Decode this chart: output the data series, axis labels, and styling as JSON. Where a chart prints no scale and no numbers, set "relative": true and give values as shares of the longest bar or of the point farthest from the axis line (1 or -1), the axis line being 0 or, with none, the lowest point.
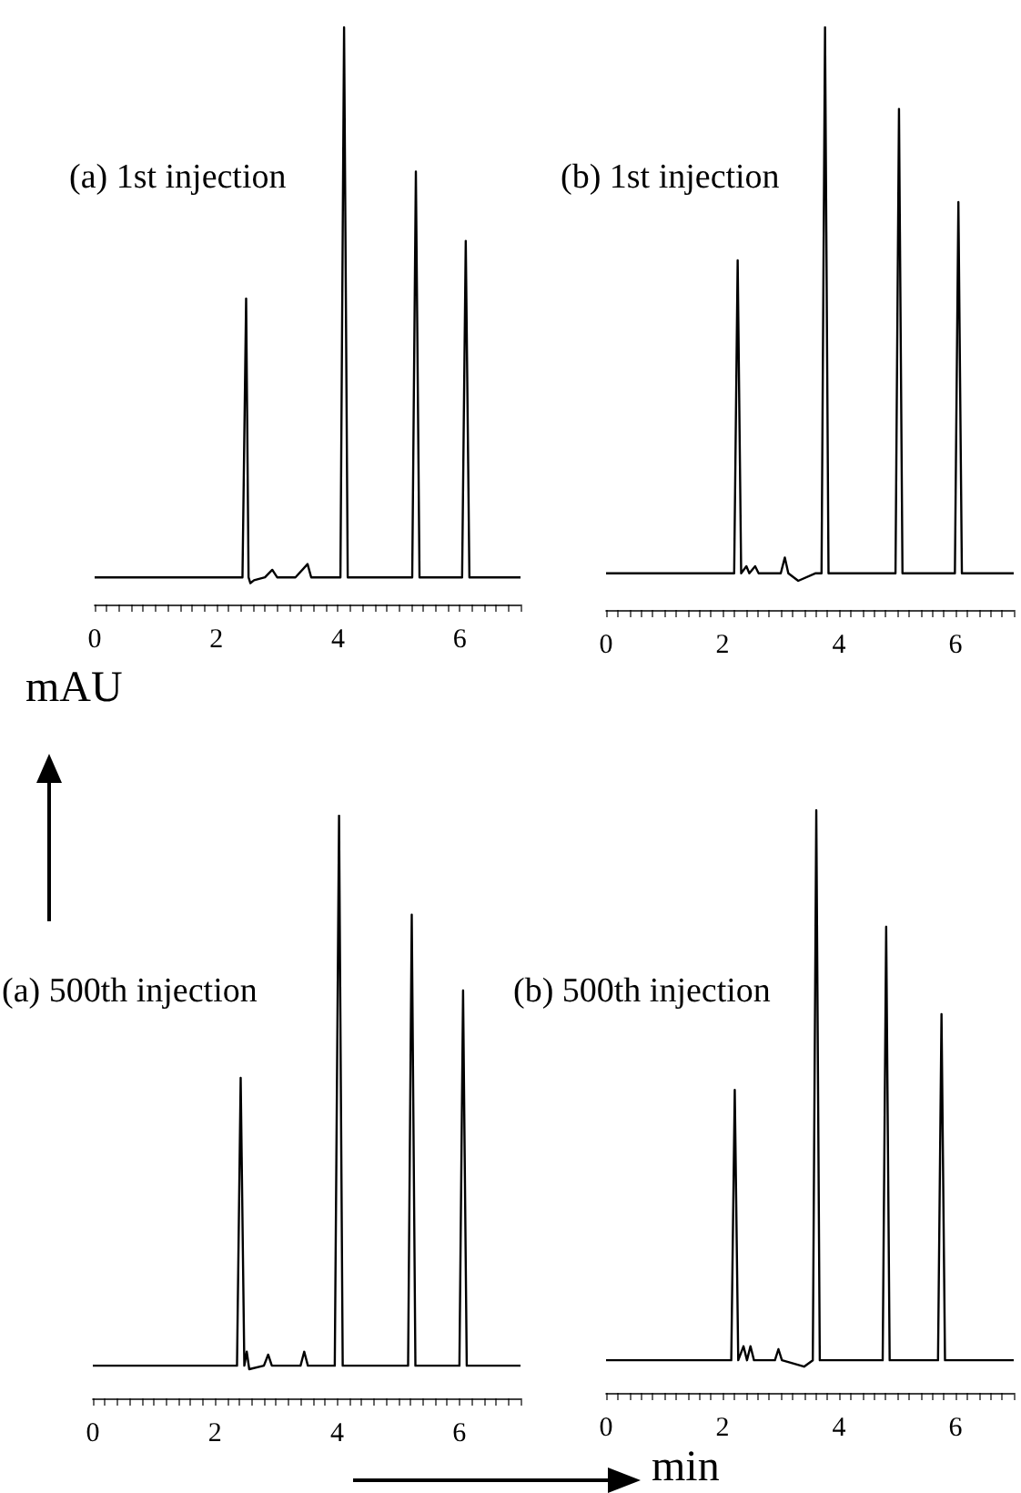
{
  "chart_data": [
    {
      "type": "line",
      "relative": true,
      "title": "(a) 1st injection",
      "marker": "none",
      "line_style": "solid",
      "xlim": [
        0,
        7
      ],
      "xticks": [
        0,
        {
          "value": 0.2,
          "label": null
        },
        {
          "value": 0.4,
          "label": null
        },
        {
          "value": 0.6,
          "label": null
        },
        {
          "value": 0.8,
          "label": null
        },
        {
          "value": 1,
          "label": null
        },
        {
          "value": 1.2,
          "label": null
        },
        {
          "value": 1.4,
          "label": null
        },
        {
          "value": 1.6,
          "label": null
        },
        {
          "value": 1.8,
          "label": null
        },
        2,
        {
          "value": 2.2,
          "label": null
        },
        {
          "value": 2.4,
          "label": null
        },
        {
          "value": 2.6,
          "label": null
        },
        {
          "value": 2.8,
          "label": null
        },
        {
          "value": 3,
          "label": null
        },
        {
          "value": 3.2,
          "label": null
        },
        {
          "value": 3.4,
          "label": null
        },
        {
          "value": 3.6,
          "label": null
        },
        {
          "value": 3.8,
          "label": null
        },
        4,
        {
          "value": 4.2,
          "label": null
        },
        {
          "value": 4.4,
          "label": null
        },
        {
          "value": 4.6,
          "label": null
        },
        {
          "value": 4.8,
          "label": null
        },
        {
          "value": 5,
          "label": null
        },
        {
          "value": 5.2,
          "label": null
        },
        {
          "value": 5.4,
          "label": null
        },
        {
          "value": 5.6,
          "label": null
        },
        {
          "value": 5.8,
          "label": null
        },
        6,
        {
          "value": 6.2,
          "label": null
        },
        {
          "value": 6.4,
          "label": null
        },
        {
          "value": 6.6,
          "label": null
        },
        {
          "value": 6.8,
          "label": null
        },
        {
          "value": 7,
          "label": null
        }
      ],
      "series": [
        {
          "color": "#000000",
          "x": [
            0,
            1,
            2,
            2.43,
            2.49,
            2.53,
            2.56,
            2.62,
            2.8,
            2.92,
            3.0,
            3.3,
            3.5,
            3.56,
            3.9,
            4.04,
            4.1,
            4.16,
            4.6,
            5.0,
            5.22,
            5.28,
            5.34,
            5.7,
            6.04,
            6.1,
            6.16,
            6.5,
            7
          ],
          "values": [
            0.047,
            0.047,
            0.047,
            0.047,
            0.53,
            0.047,
            0.037,
            0.042,
            0.047,
            0.06,
            0.047,
            0.047,
            0.07,
            0.047,
            0.047,
            0.047,
            1.0,
            0.047,
            0.047,
            0.047,
            0.047,
            0.75,
            0.047,
            0.047,
            0.047,
            0.63,
            0.047,
            0.047,
            0.047
          ]
        }
      ]
    },
    {
      "type": "line",
      "relative": true,
      "title": "(b) 1st injection",
      "marker": "none",
      "line_style": "solid",
      "xlim": [
        0,
        7
      ],
      "xticks": [
        0,
        {
          "value": 0.2,
          "label": null
        },
        {
          "value": 0.4,
          "label": null
        },
        {
          "value": 0.6,
          "label": null
        },
        {
          "value": 0.8,
          "label": null
        },
        {
          "value": 1,
          "label": null
        },
        {
          "value": 1.2,
          "label": null
        },
        {
          "value": 1.4,
          "label": null
        },
        {
          "value": 1.6,
          "label": null
        },
        {
          "value": 1.8,
          "label": null
        },
        2,
        {
          "value": 2.2,
          "label": null
        },
        {
          "value": 2.4,
          "label": null
        },
        {
          "value": 2.6,
          "label": null
        },
        {
          "value": 2.8,
          "label": null
        },
        {
          "value": 3,
          "label": null
        },
        {
          "value": 3.2,
          "label": null
        },
        {
          "value": 3.4,
          "label": null
        },
        {
          "value": 3.6,
          "label": null
        },
        {
          "value": 3.8,
          "label": null
        },
        4,
        {
          "value": 4.2,
          "label": null
        },
        {
          "value": 4.4,
          "label": null
        },
        {
          "value": 4.6,
          "label": null
        },
        {
          "value": 4.8,
          "label": null
        },
        {
          "value": 5,
          "label": null
        },
        {
          "value": 5.2,
          "label": null
        },
        {
          "value": 5.4,
          "label": null
        },
        {
          "value": 5.6,
          "label": null
        },
        {
          "value": 5.8,
          "label": null
        },
        6,
        {
          "value": 6.2,
          "label": null
        },
        {
          "value": 6.4,
          "label": null
        },
        {
          "value": 6.6,
          "label": null
        },
        {
          "value": 6.8,
          "label": null
        },
        {
          "value": 7,
          "label": null
        }
      ],
      "series": [
        {
          "color": "#000000",
          "x": [
            0,
            1,
            2,
            2.2,
            2.26,
            2.32,
            2.41,
            2.46,
            2.56,
            2.62,
            3.0,
            3.07,
            3.13,
            3.3,
            3.6,
            3.7,
            3.76,
            3.82,
            4.4,
            4.97,
            5.03,
            5.09,
            5.5,
            5.99,
            6.05,
            6.11,
            6.5,
            7
          ],
          "values": [
            0.063,
            0.063,
            0.063,
            0.063,
            0.6,
            0.063,
            0.075,
            0.063,
            0.075,
            0.063,
            0.063,
            0.09,
            0.063,
            0.05,
            0.063,
            0.063,
            1.0,
            0.063,
            0.063,
            0.063,
            0.86,
            0.063,
            0.063,
            0.063,
            0.7,
            0.063,
            0.063,
            0.063
          ]
        }
      ]
    },
    {
      "type": "line",
      "relative": true,
      "title": "(a) 500th injection",
      "ylabel": "mAU",
      "marker": "none",
      "line_style": "solid",
      "xlim": [
        0,
        7
      ],
      "xticks": [
        0,
        {
          "value": 0.2,
          "label": null
        },
        {
          "value": 0.4,
          "label": null
        },
        {
          "value": 0.6,
          "label": null
        },
        {
          "value": 0.8,
          "label": null
        },
        {
          "value": 1,
          "label": null
        },
        {
          "value": 1.2,
          "label": null
        },
        {
          "value": 1.4,
          "label": null
        },
        {
          "value": 1.6,
          "label": null
        },
        {
          "value": 1.8,
          "label": null
        },
        2,
        {
          "value": 2.2,
          "label": null
        },
        {
          "value": 2.4,
          "label": null
        },
        {
          "value": 2.6,
          "label": null
        },
        {
          "value": 2.8,
          "label": null
        },
        {
          "value": 3,
          "label": null
        },
        {
          "value": 3.2,
          "label": null
        },
        {
          "value": 3.4,
          "label": null
        },
        {
          "value": 3.6,
          "label": null
        },
        {
          "value": 3.8,
          "label": null
        },
        4,
        {
          "value": 4.2,
          "label": null
        },
        {
          "value": 4.4,
          "label": null
        },
        {
          "value": 4.6,
          "label": null
        },
        {
          "value": 4.8,
          "label": null
        },
        {
          "value": 5,
          "label": null
        },
        {
          "value": 5.2,
          "label": null
        },
        {
          "value": 5.4,
          "label": null
        },
        {
          "value": 5.6,
          "label": null
        },
        {
          "value": 5.8,
          "label": null
        },
        6,
        {
          "value": 6.2,
          "label": null
        },
        {
          "value": 6.4,
          "label": null
        },
        {
          "value": 6.6,
          "label": null
        },
        {
          "value": 6.8,
          "label": null
        },
        {
          "value": 7,
          "label": null
        }
      ],
      "series": [
        {
          "color": "#000000",
          "x": [
            0,
            1,
            2,
            2.36,
            2.42,
            2.48,
            2.52,
            2.56,
            2.8,
            2.87,
            2.93,
            3.4,
            3.46,
            3.52,
            3.96,
            4.03,
            4.09,
            4.6,
            5.16,
            5.22,
            5.28,
            5.7,
            6.0,
            6.06,
            6.12,
            6.5,
            7
          ],
          "values": [
            0.056,
            0.056,
            0.056,
            0.056,
            0.55,
            0.056,
            0.08,
            0.05,
            0.056,
            0.075,
            0.056,
            0.056,
            0.08,
            0.056,
            0.056,
            1.0,
            0.056,
            0.056,
            0.056,
            0.83,
            0.056,
            0.056,
            0.056,
            0.7,
            0.056,
            0.056,
            0.056
          ]
        }
      ]
    },
    {
      "type": "line",
      "relative": true,
      "title": "(b) 500th injection",
      "xlabel": "min",
      "marker": "none",
      "line_style": "solid",
      "xlim": [
        0,
        7
      ],
      "xticks": [
        0,
        {
          "value": 0.2,
          "label": null
        },
        {
          "value": 0.4,
          "label": null
        },
        {
          "value": 0.6,
          "label": null
        },
        {
          "value": 0.8,
          "label": null
        },
        {
          "value": 1,
          "label": null
        },
        {
          "value": 1.2,
          "label": null
        },
        {
          "value": 1.4,
          "label": null
        },
        {
          "value": 1.6,
          "label": null
        },
        {
          "value": 1.8,
          "label": null
        },
        2,
        {
          "value": 2.2,
          "label": null
        },
        {
          "value": 2.4,
          "label": null
        },
        {
          "value": 2.6,
          "label": null
        },
        {
          "value": 2.8,
          "label": null
        },
        {
          "value": 3,
          "label": null
        },
        {
          "value": 3.2,
          "label": null
        },
        {
          "value": 3.4,
          "label": null
        },
        {
          "value": 3.6,
          "label": null
        },
        {
          "value": 3.8,
          "label": null
        },
        4,
        {
          "value": 4.2,
          "label": null
        },
        {
          "value": 4.4,
          "label": null
        },
        {
          "value": 4.6,
          "label": null
        },
        {
          "value": 4.8,
          "label": null
        },
        {
          "value": 5,
          "label": null
        },
        {
          "value": 5.2,
          "label": null
        },
        {
          "value": 5.4,
          "label": null
        },
        {
          "value": 5.6,
          "label": null
        },
        {
          "value": 5.8,
          "label": null
        },
        6,
        {
          "value": 6.2,
          "label": null
        },
        {
          "value": 6.4,
          "label": null
        },
        {
          "value": 6.6,
          "label": null
        },
        {
          "value": 6.8,
          "label": null
        },
        {
          "value": 7,
          "label": null
        }
      ],
      "series": [
        {
          "color": "#000000",
          "x": [
            0,
            1,
            2,
            2.15,
            2.21,
            2.27,
            2.36,
            2.42,
            2.48,
            2.54,
            2.9,
            2.96,
            3.02,
            3.4,
            3.55,
            3.61,
            3.67,
            4.2,
            4.75,
            4.81,
            4.87,
            5.3,
            5.7,
            5.76,
            5.82,
            6.3,
            7
          ],
          "values": [
            0.056,
            0.056,
            0.056,
            0.056,
            0.52,
            0.056,
            0.08,
            0.056,
            0.08,
            0.056,
            0.056,
            0.075,
            0.056,
            0.045,
            0.056,
            1.0,
            0.056,
            0.056,
            0.056,
            0.8,
            0.056,
            0.056,
            0.056,
            0.65,
            0.056,
            0.056,
            0.056
          ]
        }
      ]
    }
  ]
}
